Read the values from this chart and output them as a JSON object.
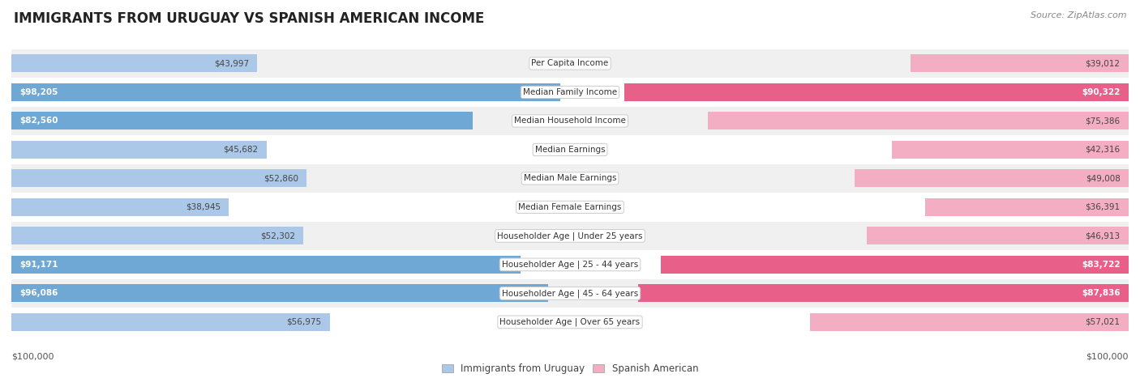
{
  "title": "IMMIGRANTS FROM URUGUAY VS SPANISH AMERICAN INCOME",
  "source": "Source: ZipAtlas.com",
  "categories": [
    "Per Capita Income",
    "Median Family Income",
    "Median Household Income",
    "Median Earnings",
    "Median Male Earnings",
    "Median Female Earnings",
    "Householder Age | Under 25 years",
    "Householder Age | 25 - 44 years",
    "Householder Age | 45 - 64 years",
    "Householder Age | Over 65 years"
  ],
  "uruguay_values": [
    43997,
    98205,
    82560,
    45682,
    52860,
    38945,
    52302,
    91171,
    96086,
    56975
  ],
  "spanish_values": [
    39012,
    90322,
    75386,
    42316,
    49008,
    36391,
    46913,
    83722,
    87836,
    57021
  ],
  "uruguay_color_light": "#abc8e8",
  "uruguay_color_dark": "#6fa8d4",
  "spanish_color_light": "#f4aec4",
  "spanish_color_dark": "#e8608a",
  "max_value": 100000,
  "bg_color": "#ffffff",
  "row_bg_light": "#f0f0f0",
  "row_bg_white": "#ffffff",
  "threshold_dark": 80000,
  "xlabel_left": "$100,000",
  "xlabel_right": "$100,000",
  "legend_uruguay": "Immigrants from Uruguay",
  "legend_spanish": "Spanish American",
  "title_fontsize": 12,
  "source_fontsize": 8,
  "value_fontsize": 7.5,
  "label_fontsize": 7.5,
  "legend_fontsize": 8.5,
  "axis_fontsize": 8
}
